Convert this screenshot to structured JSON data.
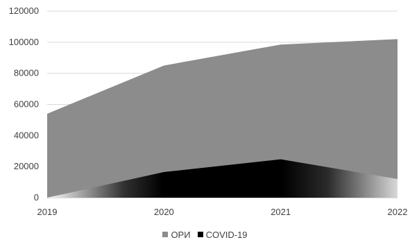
{
  "chart_data": {
    "type": "area",
    "x": [
      "2019",
      "2020",
      "2021",
      "2022"
    ],
    "series": [
      {
        "name": "ОРИ",
        "values": [
          54000,
          85000,
          98500,
          102000
        ],
        "color": "#8c8c8c"
      },
      {
        "name": "COVID-19",
        "values": [
          0,
          16500,
          24700,
          12000
        ],
        "color": "#000000"
      }
    ],
    "ylim": [
      0,
      120000
    ],
    "yticks": [
      "0",
      "20000",
      "40000",
      "60000",
      "80000",
      "100000",
      "120000"
    ],
    "grid": true,
    "legend_position": "bottom"
  }
}
